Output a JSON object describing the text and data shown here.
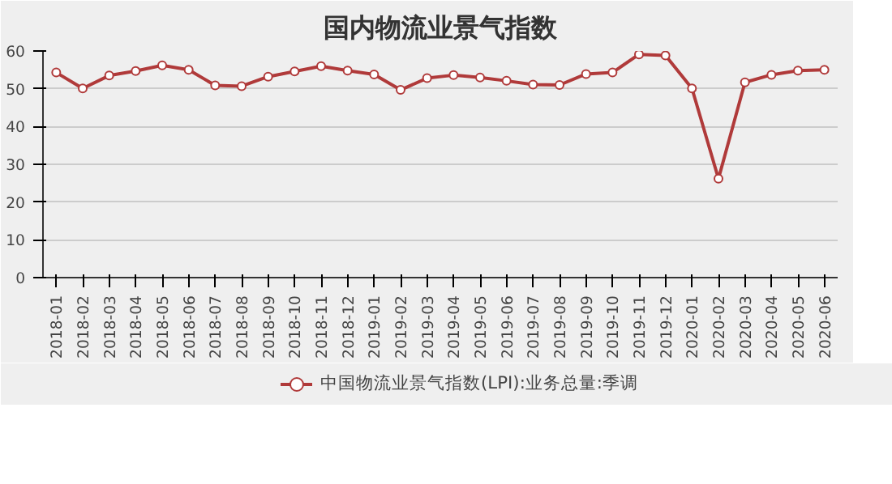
{
  "chart_data": {
    "type": "line",
    "title": "国内物流业景气指数",
    "categories": [
      "2018-01",
      "2018-02",
      "2018-03",
      "2018-04",
      "2018-05",
      "2018-06",
      "2018-07",
      "2018-08",
      "2018-09",
      "2018-10",
      "2018-11",
      "2018-12",
      "2019-01",
      "2019-02",
      "2019-03",
      "2019-04",
      "2019-05",
      "2019-06",
      "2019-07",
      "2019-08",
      "2019-09",
      "2019-10",
      "2019-11",
      "2019-12",
      "2020-01",
      "2020-02",
      "2020-03",
      "2020-04",
      "2020-05",
      "2020-06"
    ],
    "series": [
      {
        "name": "中国物流业景气指数(LPI):业务总量:季调",
        "color": "#b03a3a",
        "values": [
          54.3,
          50.1,
          53.5,
          54.7,
          56.2,
          55.0,
          50.9,
          50.7,
          53.2,
          54.6,
          56.0,
          54.8,
          53.8,
          49.7,
          52.8,
          53.6,
          53.0,
          52.1,
          51.1,
          51.0,
          53.9,
          54.3,
          59.1,
          58.8,
          50.1,
          26.2,
          51.7,
          53.7,
          54.8,
          55.0
        ]
      }
    ],
    "ylim": [
      0,
      60
    ],
    "yticks": [
      0,
      10,
      20,
      30,
      40,
      50,
      60
    ],
    "grid": "y",
    "legend": "bottom",
    "marker": "circle",
    "line_style": "solid"
  }
}
